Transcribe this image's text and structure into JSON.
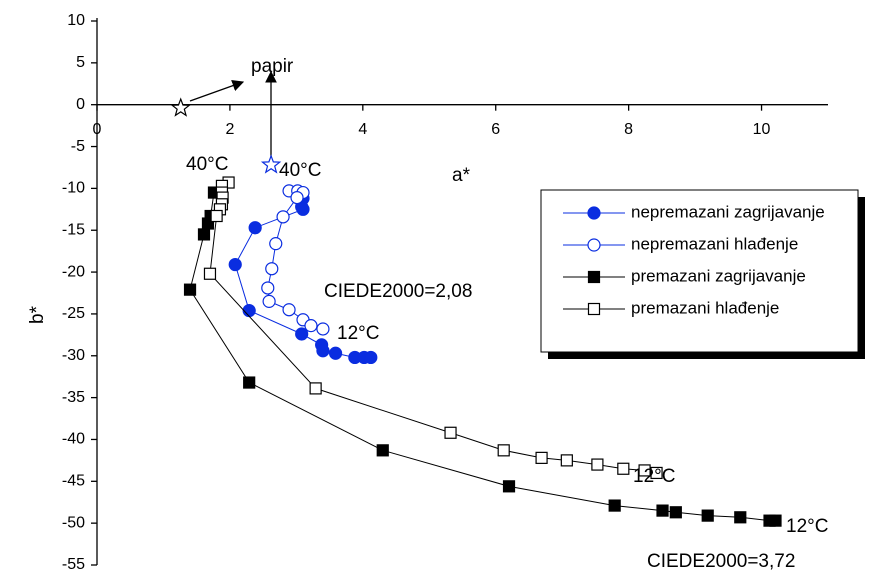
{
  "chart_data": {
    "type": "line",
    "xlabel": "a*",
    "ylabel": "b*",
    "xlim": [
      0,
      11
    ],
    "ylim": [
      -55,
      10
    ],
    "xticks": [
      0,
      2,
      4,
      6,
      8,
      10
    ],
    "yticks": [
      10,
      5,
      0,
      -5,
      -10,
      -15,
      -20,
      -25,
      -30,
      -35,
      -40,
      -45,
      -50,
      -55
    ],
    "legend": "upper right",
    "series": [
      {
        "name": "nepremazani zagrijavanje",
        "color": "#0a2de0",
        "marker": "circle",
        "filled": true,
        "x": [
          3.1,
          3.08,
          3.1,
          2.38,
          2.08,
          2.29,
          3.08,
          3.38,
          3.4,
          3.59,
          3.88,
          4.02,
          4.12
        ],
        "values": [
          -11.2,
          -12.2,
          -12.5,
          -14.7,
          -19.1,
          -24.6,
          -27.4,
          -28.7,
          -29.4,
          -29.7,
          -30.2,
          -30.2,
          -30.2
        ]
      },
      {
        "name": "nepremazani hlađenje",
        "color": "#0a2de0",
        "marker": "circle",
        "filled": false,
        "x": [
          2.89,
          3.02,
          3.1,
          3.01,
          2.8,
          2.69,
          2.63,
          2.57,
          2.59,
          2.89,
          3.1,
          3.22,
          3.4
        ],
        "values": [
          -10.3,
          -10.3,
          -10.5,
          -11.1,
          -13.4,
          -16.6,
          -19.6,
          -21.9,
          -23.5,
          -24.5,
          -25.7,
          -26.4,
          -26.8
        ]
      },
      {
        "name": "premazani zagrijavanje",
        "color": "#000000",
        "marker": "square",
        "filled": true,
        "x": [
          1.76,
          1.71,
          1.67,
          1.61,
          1.4,
          2.29,
          4.3,
          6.2,
          7.79,
          8.51,
          8.71,
          9.19,
          9.68,
          10.12,
          10.21
        ],
        "values": [
          -10.5,
          -13.3,
          -14.2,
          -15.5,
          -22.1,
          -33.2,
          -41.3,
          -45.6,
          -47.9,
          -48.5,
          -48.7,
          -49.1,
          -49.3,
          -49.7,
          -49.7
        ]
      },
      {
        "name": "premazani hlađenje",
        "color": "#000000",
        "marker": "square",
        "filled": false,
        "x": [
          1.98,
          1.88,
          1.88,
          1.89,
          1.88,
          1.85,
          1.8,
          1.7,
          3.29,
          5.32,
          6.12,
          6.69,
          7.07,
          7.53,
          7.92,
          8.24,
          8.42
        ],
        "values": [
          -9.3,
          -9.7,
          -10.5,
          -11.1,
          -11.9,
          -12.5,
          -13.3,
          -20.2,
          -33.9,
          -39.2,
          -41.3,
          -42.2,
          -42.5,
          -43.0,
          -43.5,
          -43.7,
          -44.0
        ]
      }
    ],
    "star_points": {
      "color": "#000000",
      "x": [
        1.26,
        2.62
      ],
      "values": [
        -0.4,
        -7.2
      ],
      "colors": [
        "#000000",
        "#0a2de0"
      ]
    },
    "annotations": [
      "papir",
      "40°C",
      "40°C",
      "CIEDE2000=2,08",
      "12°C",
      "12°C",
      "12°C",
      "CIEDE2000=3,72"
    ]
  }
}
